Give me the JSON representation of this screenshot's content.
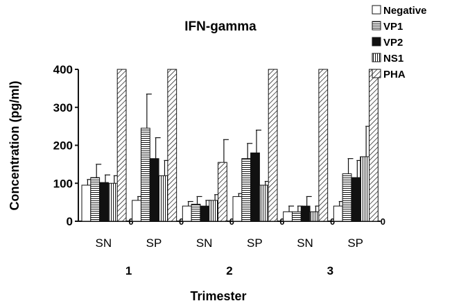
{
  "chart_data": {
    "type": "bar",
    "title": "IFN-gamma",
    "xlabel": "Trimester",
    "ylabel": "Concentration (pg/ml)",
    "ylim": [
      0,
      400
    ],
    "yticks": [
      "0",
      "100",
      "200",
      "300",
      "400"
    ],
    "groups": [
      {
        "trimester": "1",
        "label": "SN"
      },
      {
        "trimester": "1",
        "label": "SP"
      },
      {
        "trimester": "2",
        "label": "SN"
      },
      {
        "trimester": "2",
        "label": "SP"
      },
      {
        "trimester": "3",
        "label": "SN"
      },
      {
        "trimester": "3",
        "label": "SP"
      }
    ],
    "trimesters": [
      "1",
      "2",
      "3"
    ],
    "zero_marker": "0",
    "legend_position": "top-right",
    "series": [
      {
        "name": "Negative",
        "pattern": "white",
        "values": [
          95,
          55,
          40,
          65,
          25,
          40
        ],
        "errors": [
          15,
          10,
          12,
          8,
          15,
          12
        ]
      },
      {
        "name": "VP1",
        "pattern": "horizontal-lines",
        "values": [
          115,
          245,
          45,
          165,
          25,
          125
        ],
        "errors": [
          35,
          90,
          20,
          40,
          15,
          40
        ]
      },
      {
        "name": "VP2",
        "pattern": "black",
        "values": [
          102,
          165,
          40,
          180,
          40,
          115
        ],
        "errors": [
          20,
          55,
          15,
          60,
          25,
          45
        ]
      },
      {
        "name": "NS1",
        "pattern": "vertical-lines",
        "values": [
          100,
          120,
          55,
          95,
          25,
          170
        ],
        "errors": [
          20,
          40,
          15,
          10,
          15,
          80
        ]
      },
      {
        "name": "PHA",
        "pattern": "diagonal-lines",
        "values": [
          400,
          400,
          155,
          400,
          400,
          400
        ],
        "errors": [
          0,
          0,
          60,
          0,
          0,
          0
        ]
      }
    ]
  }
}
